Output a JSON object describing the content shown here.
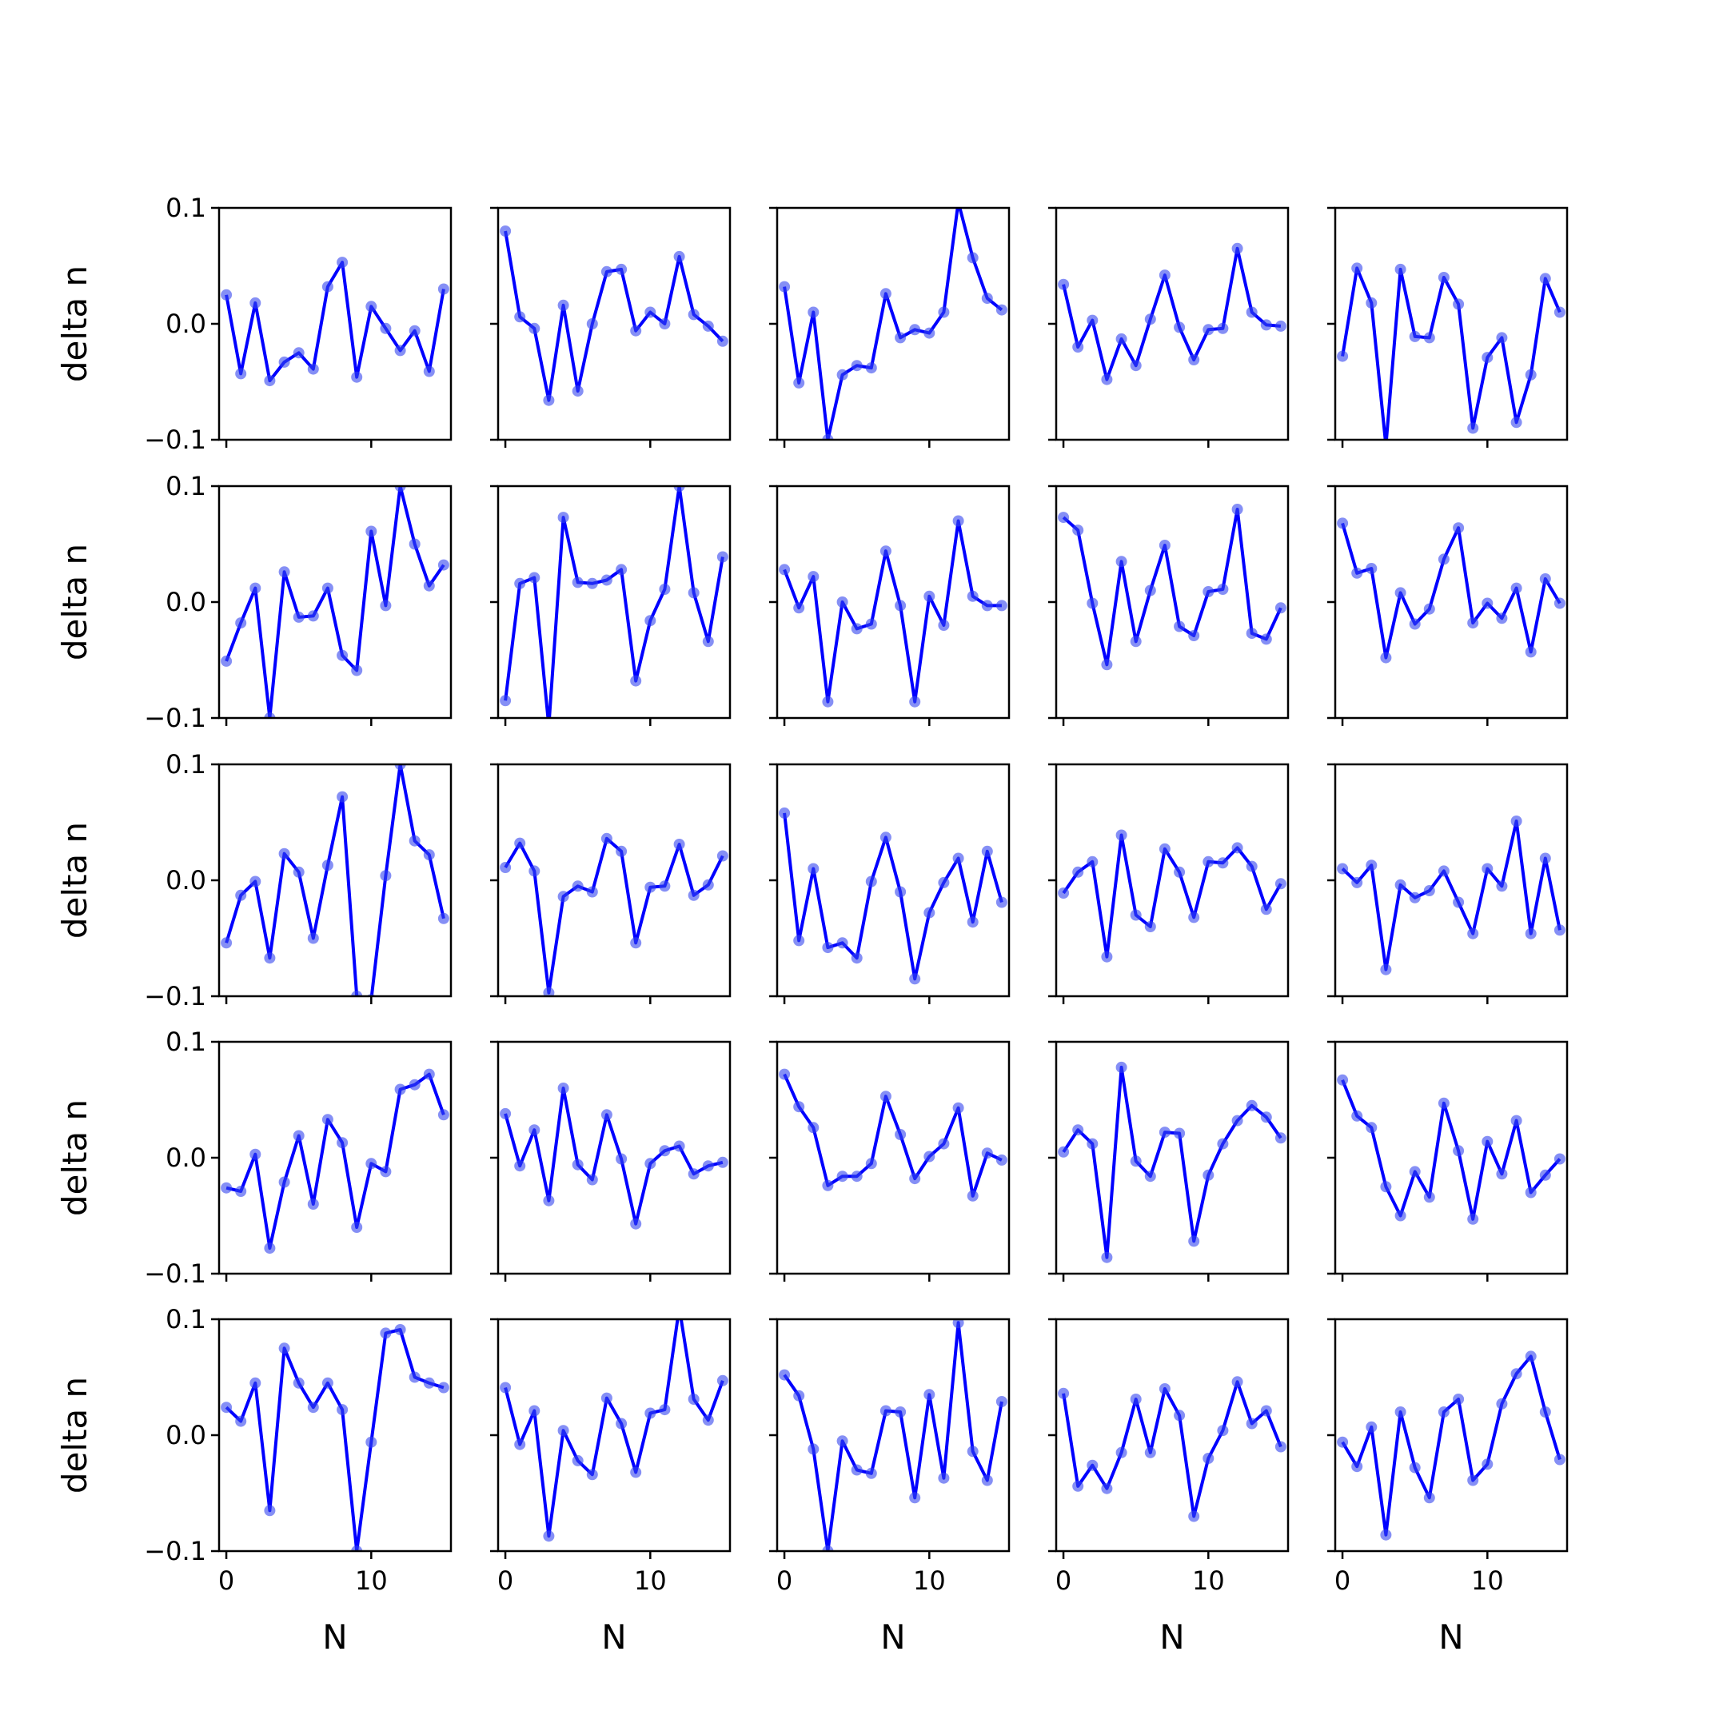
{
  "chart_data": {
    "type": "line",
    "layout": "5x5 grid of small-multiple line plots with markers",
    "x": [
      0,
      1,
      2,
      3,
      4,
      5,
      6,
      7,
      8,
      9,
      10,
      11,
      12,
      13,
      14,
      15
    ],
    "xlim": [
      -0.5,
      15.5
    ],
    "ylim": [
      -0.1,
      0.1
    ],
    "xticks": [
      0,
      10
    ],
    "xtick_labels": [
      "0",
      "10"
    ],
    "yticks": [
      -0.1,
      0.0,
      0.1
    ],
    "ytick_labels": [
      "−0.1",
      "0.0",
      "0.1"
    ],
    "xlabel": "N",
    "ylabel": "delta n",
    "line_color": "#0000ff",
    "marker_color": "#3344ee",
    "grid": false,
    "panels": [
      [
        {
          "values": [
            0.025,
            -0.043,
            0.018,
            -0.049,
            -0.033,
            -0.025,
            -0.039,
            0.032,
            0.053,
            -0.046,
            0.015,
            -0.004,
            -0.023,
            -0.006,
            -0.041,
            0.03
          ]
        },
        {
          "values": [
            0.08,
            0.006,
            -0.004,
            -0.066,
            0.016,
            -0.058,
            0.0,
            0.045,
            0.047,
            -0.006,
            0.01,
            0.0,
            0.058,
            0.008,
            -0.002,
            -0.015
          ]
        },
        {
          "values": [
            0.032,
            -0.051,
            0.01,
            -0.1,
            -0.044,
            -0.036,
            -0.038,
            0.026,
            -0.012,
            -0.005,
            -0.008,
            0.01,
            0.105,
            0.057,
            0.022,
            0.012
          ]
        },
        {
          "values": [
            0.034,
            -0.02,
            0.003,
            -0.048,
            -0.013,
            -0.036,
            0.004,
            0.042,
            -0.003,
            -0.031,
            -0.005,
            -0.004,
            0.065,
            0.01,
            -0.001,
            -0.002
          ]
        },
        {
          "values": [
            -0.028,
            0.048,
            0.018,
            -0.105,
            0.047,
            -0.011,
            -0.012,
            0.04,
            0.017,
            -0.09,
            -0.029,
            -0.012,
            -0.085,
            -0.044,
            0.039,
            0.01
          ]
        }
      ],
      [
        {
          "values": [
            -0.051,
            -0.018,
            0.012,
            -0.1,
            0.026,
            -0.013,
            -0.012,
            0.012,
            -0.046,
            -0.059,
            0.061,
            -0.003,
            0.1,
            0.05,
            0.014,
            0.032
          ]
        },
        {
          "values": [
            -0.085,
            0.016,
            0.021,
            -0.107,
            0.073,
            0.017,
            0.016,
            0.019,
            0.028,
            -0.068,
            -0.016,
            0.011,
            0.1,
            0.008,
            -0.034,
            0.039
          ]
        },
        {
          "values": [
            0.028,
            -0.005,
            0.022,
            -0.086,
            0.0,
            -0.023,
            -0.019,
            0.044,
            -0.003,
            -0.086,
            0.005,
            -0.02,
            0.07,
            0.005,
            -0.003,
            -0.003
          ]
        },
        {
          "values": [
            0.073,
            0.062,
            -0.001,
            -0.054,
            0.035,
            -0.034,
            0.01,
            0.049,
            -0.021,
            -0.029,
            0.009,
            0.011,
            0.08,
            -0.027,
            -0.032,
            -0.005
          ]
        },
        {
          "values": [
            0.068,
            0.025,
            0.029,
            -0.048,
            0.008,
            -0.019,
            -0.006,
            0.037,
            0.064,
            -0.018,
            -0.001,
            -0.014,
            0.012,
            -0.043,
            0.02,
            -0.001
          ]
        }
      ],
      [
        {
          "values": [
            -0.054,
            -0.013,
            -0.001,
            -0.067,
            0.023,
            0.007,
            -0.05,
            0.013,
            0.072,
            -0.1,
            -0.103,
            0.004,
            0.1,
            0.034,
            0.022,
            -0.033
          ]
        },
        {
          "values": [
            0.011,
            0.032,
            0.008,
            -0.097,
            -0.014,
            -0.005,
            -0.01,
            0.036,
            0.025,
            -0.054,
            -0.006,
            -0.005,
            0.031,
            -0.013,
            -0.004,
            0.021
          ]
        },
        {
          "values": [
            0.058,
            -0.052,
            0.01,
            -0.058,
            -0.054,
            -0.067,
            -0.001,
            0.037,
            -0.01,
            -0.085,
            -0.028,
            -0.002,
            0.019,
            -0.036,
            0.025,
            -0.019
          ]
        },
        {
          "values": [
            -0.011,
            0.007,
            0.016,
            -0.066,
            0.039,
            -0.03,
            -0.04,
            0.027,
            0.007,
            -0.032,
            0.016,
            0.015,
            0.028,
            0.012,
            -0.025,
            -0.003
          ]
        },
        {
          "values": [
            0.01,
            -0.002,
            0.013,
            -0.077,
            -0.004,
            -0.015,
            -0.009,
            0.008,
            -0.019,
            -0.046,
            0.01,
            -0.005,
            0.051,
            -0.046,
            0.019,
            -0.043
          ]
        }
      ],
      [
        {
          "values": [
            -0.026,
            -0.029,
            0.003,
            -0.078,
            -0.021,
            0.019,
            -0.04,
            0.033,
            0.013,
            -0.06,
            -0.005,
            -0.012,
            0.059,
            0.063,
            0.072,
            0.037
          ]
        },
        {
          "values": [
            0.038,
            -0.007,
            0.024,
            -0.037,
            0.06,
            -0.006,
            -0.019,
            0.037,
            -0.001,
            -0.057,
            -0.005,
            0.006,
            0.01,
            -0.014,
            -0.007,
            -0.004
          ]
        },
        {
          "values": [
            0.072,
            0.044,
            0.026,
            -0.024,
            -0.016,
            -0.016,
            -0.005,
            0.053,
            0.02,
            -0.018,
            0.001,
            0.012,
            0.043,
            -0.033,
            0.004,
            -0.002
          ]
        },
        {
          "values": [
            0.005,
            0.024,
            0.012,
            -0.086,
            0.078,
            -0.003,
            -0.016,
            0.022,
            0.021,
            -0.072,
            -0.015,
            0.012,
            0.032,
            0.045,
            0.035,
            0.017
          ]
        },
        {
          "values": [
            0.067,
            0.036,
            0.026,
            -0.025,
            -0.05,
            -0.012,
            -0.034,
            0.047,
            0.006,
            -0.053,
            0.014,
            -0.014,
            0.032,
            -0.03,
            -0.015,
            -0.001
          ]
        }
      ],
      [
        {
          "values": [
            0.024,
            0.012,
            0.045,
            -0.065,
            0.075,
            0.045,
            0.024,
            0.045,
            0.022,
            -0.1,
            -0.006,
            0.088,
            0.091,
            0.05,
            0.045,
            0.041
          ]
        },
        {
          "values": [
            0.041,
            -0.008,
            0.021,
            -0.087,
            0.004,
            -0.022,
            -0.034,
            0.032,
            0.01,
            -0.032,
            0.019,
            0.022,
            0.11,
            0.031,
            0.013,
            0.047
          ]
        },
        {
          "values": [
            0.052,
            0.034,
            -0.012,
            -0.1,
            -0.005,
            -0.03,
            -0.033,
            0.021,
            0.02,
            -0.054,
            0.035,
            -0.037,
            0.097,
            -0.014,
            -0.039,
            0.029
          ]
        },
        {
          "values": [
            0.036,
            -0.044,
            -0.026,
            -0.046,
            -0.015,
            0.031,
            -0.015,
            0.04,
            0.017,
            -0.07,
            -0.02,
            0.004,
            0.046,
            0.01,
            0.021,
            -0.01
          ]
        },
        {
          "values": [
            -0.006,
            -0.027,
            0.007,
            -0.086,
            0.02,
            -0.028,
            -0.054,
            0.02,
            0.031,
            -0.039,
            -0.025,
            0.027,
            0.053,
            0.068,
            0.02,
            -0.021
          ]
        }
      ]
    ]
  }
}
